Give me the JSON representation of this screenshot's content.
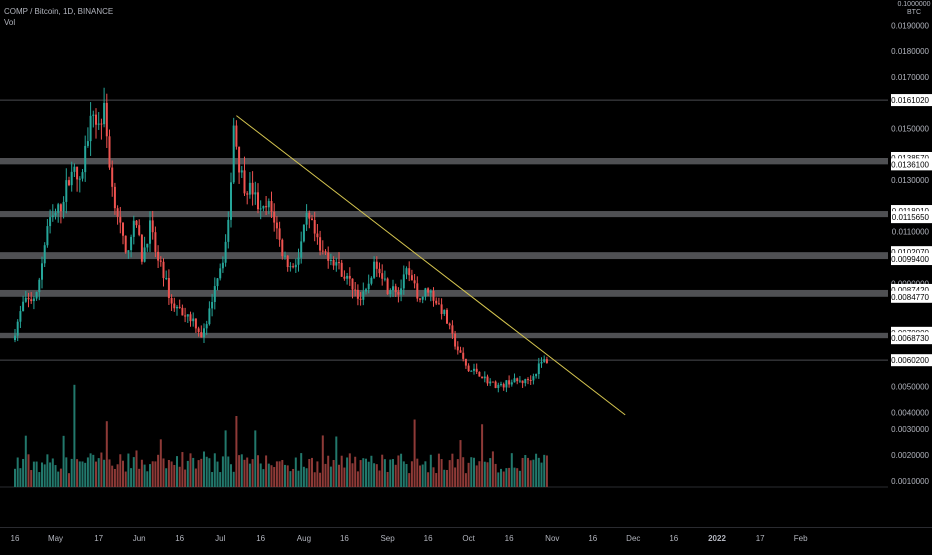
{
  "header": {
    "symbol_line": "COMP / Bitcoin, 1D, BINANCE",
    "indicator": "Vol",
    "unit_top": "0.1000000",
    "unit": "BTC"
  },
  "chart_data": {
    "type": "candlestick",
    "title": "COMP / Bitcoin, 1D, BINANCE",
    "price_axis": {
      "range": [
        0.0035,
        0.0198
      ],
      "ticks": [
        "0.0190000",
        "0.0180000",
        "0.0170000",
        "0.0150000",
        "0.0130000",
        "0.0110000",
        "0.0090000",
        "0.0050000",
        "0.0040000"
      ],
      "tick_values": [
        0.019,
        0.018,
        0.017,
        0.015,
        0.013,
        0.011,
        0.009,
        0.005,
        0.004
      ]
    },
    "volume_axis": {
      "ticks": [
        "0.0030000",
        "0.0020000",
        "0.0010000"
      ],
      "tick_values": [
        0.003,
        0.002,
        0.001
      ]
    },
    "time_axis": {
      "ticks": [
        {
          "label": "16",
          "day": -15
        },
        {
          "label": "May",
          "day": 0
        },
        {
          "label": "17",
          "day": 16
        },
        {
          "label": "Jun",
          "day": 31
        },
        {
          "label": "16",
          "day": 46
        },
        {
          "label": "Jul",
          "day": 61
        },
        {
          "label": "16",
          "day": 76
        },
        {
          "label": "Aug",
          "day": 92
        },
        {
          "label": "16",
          "day": 107
        },
        {
          "label": "Sep",
          "day": 123
        },
        {
          "label": "16",
          "day": 138
        },
        {
          "label": "Oct",
          "day": 153
        },
        {
          "label": "16",
          "day": 168
        },
        {
          "label": "Nov",
          "day": 184
        },
        {
          "label": "16",
          "day": 199
        },
        {
          "label": "Dec",
          "day": 214
        },
        {
          "label": "16",
          "day": 229
        },
        {
          "label": "2022",
          "day": 245,
          "bold": true
        },
        {
          "label": "17",
          "day": 261
        },
        {
          "label": "Feb",
          "day": 276
        }
      ]
    },
    "horizontal_levels": [
      {
        "value": 0.016102,
        "label": "0.0161020",
        "style": "line"
      },
      {
        "value": 0.013857,
        "label": "0.0138570",
        "style": "zone"
      },
      {
        "value": 0.01361,
        "label": "0.0136100",
        "style": "zone"
      },
      {
        "value": 0.011801,
        "label": "0.0118010",
        "style": "zone"
      },
      {
        "value": 0.011565,
        "label": "0.0115650",
        "style": "zone"
      },
      {
        "value": 0.010207,
        "label": "0.0102070",
        "style": "zone"
      },
      {
        "value": 0.00994,
        "label": "0.0099400",
        "style": "zone"
      },
      {
        "value": 0.008742,
        "label": "0.0087420",
        "style": "zone"
      },
      {
        "value": 0.008477,
        "label": "0.0084770",
        "style": "zone"
      },
      {
        "value": 0.00708,
        "label": "0.0070800",
        "style": "zone"
      },
      {
        "value": 0.006873,
        "label": "0.0068730",
        "style": "zone"
      },
      {
        "value": 0.00602,
        "label": "0.0060200",
        "style": "line"
      }
    ],
    "zones": [
      {
        "low": 0.01361,
        "high": 0.013857
      },
      {
        "low": 0.011565,
        "high": 0.011801
      },
      {
        "low": 0.00994,
        "high": 0.010207
      },
      {
        "low": 0.008477,
        "high": 0.008742
      },
      {
        "low": 0.006873,
        "high": 0.00708
      }
    ],
    "trendline": {
      "from": {
        "day": 67,
        "price": 0.0155
      },
      "to": {
        "day": 211,
        "price": 0.0039
      },
      "color": "#d4c44f"
    },
    "anchors": [
      {
        "day": -15,
        "price": 0.0068
      },
      {
        "day": -11,
        "price": 0.0082
      },
      {
        "day": -6,
        "price": 0.0085
      },
      {
        "day": -2,
        "price": 0.0112
      },
      {
        "day": 3,
        "price": 0.012
      },
      {
        "day": 7,
        "price": 0.0135
      },
      {
        "day": 10,
        "price": 0.0128
      },
      {
        "day": 13,
        "price": 0.0148
      },
      {
        "day": 15,
        "price": 0.0156
      },
      {
        "day": 17,
        "price": 0.0151
      },
      {
        "day": 19,
        "price": 0.0157
      },
      {
        "day": 22,
        "price": 0.0127
      },
      {
        "day": 25,
        "price": 0.0112
      },
      {
        "day": 27,
        "price": 0.01
      },
      {
        "day": 29,
        "price": 0.011
      },
      {
        "day": 31,
        "price": 0.0113
      },
      {
        "day": 33,
        "price": 0.01
      },
      {
        "day": 36,
        "price": 0.0112
      },
      {
        "day": 39,
        "price": 0.0098
      },
      {
        "day": 41,
        "price": 0.0094
      },
      {
        "day": 44,
        "price": 0.0082
      },
      {
        "day": 48,
        "price": 0.0079
      },
      {
        "day": 52,
        "price": 0.0076
      },
      {
        "day": 55,
        "price": 0.007
      },
      {
        "day": 57,
        "price": 0.0073
      },
      {
        "day": 60,
        "price": 0.009
      },
      {
        "day": 63,
        "price": 0.01
      },
      {
        "day": 65,
        "price": 0.0112
      },
      {
        "day": 67,
        "price": 0.0152
      },
      {
        "day": 69,
        "price": 0.0136
      },
      {
        "day": 71,
        "price": 0.0128
      },
      {
        "day": 74,
        "price": 0.0126
      },
      {
        "day": 77,
        "price": 0.0117
      },
      {
        "day": 80,
        "price": 0.012
      },
      {
        "day": 82,
        "price": 0.0115
      },
      {
        "day": 85,
        "price": 0.0102
      },
      {
        "day": 88,
        "price": 0.0096
      },
      {
        "day": 91,
        "price": 0.01
      },
      {
        "day": 94,
        "price": 0.0115
      },
      {
        "day": 96,
        "price": 0.0112
      },
      {
        "day": 99,
        "price": 0.0102
      },
      {
        "day": 102,
        "price": 0.0101
      },
      {
        "day": 105,
        "price": 0.0098
      },
      {
        "day": 108,
        "price": 0.0093
      },
      {
        "day": 111,
        "price": 0.0089
      },
      {
        "day": 114,
        "price": 0.0084
      },
      {
        "day": 116,
        "price": 0.0086
      },
      {
        "day": 118,
        "price": 0.0094
      },
      {
        "day": 120,
        "price": 0.0098
      },
      {
        "day": 122,
        "price": 0.0094
      },
      {
        "day": 124,
        "price": 0.0088
      },
      {
        "day": 126,
        "price": 0.009
      },
      {
        "day": 128,
        "price": 0.0086
      },
      {
        "day": 131,
        "price": 0.0094
      },
      {
        "day": 134,
        "price": 0.0088
      },
      {
        "day": 136,
        "price": 0.0084
      },
      {
        "day": 139,
        "price": 0.0088
      },
      {
        "day": 142,
        "price": 0.0083
      },
      {
        "day": 145,
        "price": 0.0078
      },
      {
        "day": 148,
        "price": 0.0069
      },
      {
        "day": 151,
        "price": 0.0062
      },
      {
        "day": 154,
        "price": 0.0056
      },
      {
        "day": 157,
        "price": 0.0056
      },
      {
        "day": 160,
        "price": 0.0053
      },
      {
        "day": 163,
        "price": 0.0051
      },
      {
        "day": 166,
        "price": 0.005
      },
      {
        "day": 169,
        "price": 0.0052
      },
      {
        "day": 172,
        "price": 0.0052
      },
      {
        "day": 175,
        "price": 0.0052
      },
      {
        "day": 178,
        "price": 0.0054
      },
      {
        "day": 180,
        "price": 0.0058
      },
      {
        "day": 182,
        "price": 0.006
      }
    ],
    "colors": {
      "up": "#26a69a",
      "down": "#ef5350",
      "vol_up": "#22786c",
      "vol_down": "#8e3a37",
      "zone": "#5d5e62",
      "line": "#4a4b50",
      "text": "#b2b5be",
      "label_bg": "#ffffff",
      "label_text": "#000000"
    }
  }
}
